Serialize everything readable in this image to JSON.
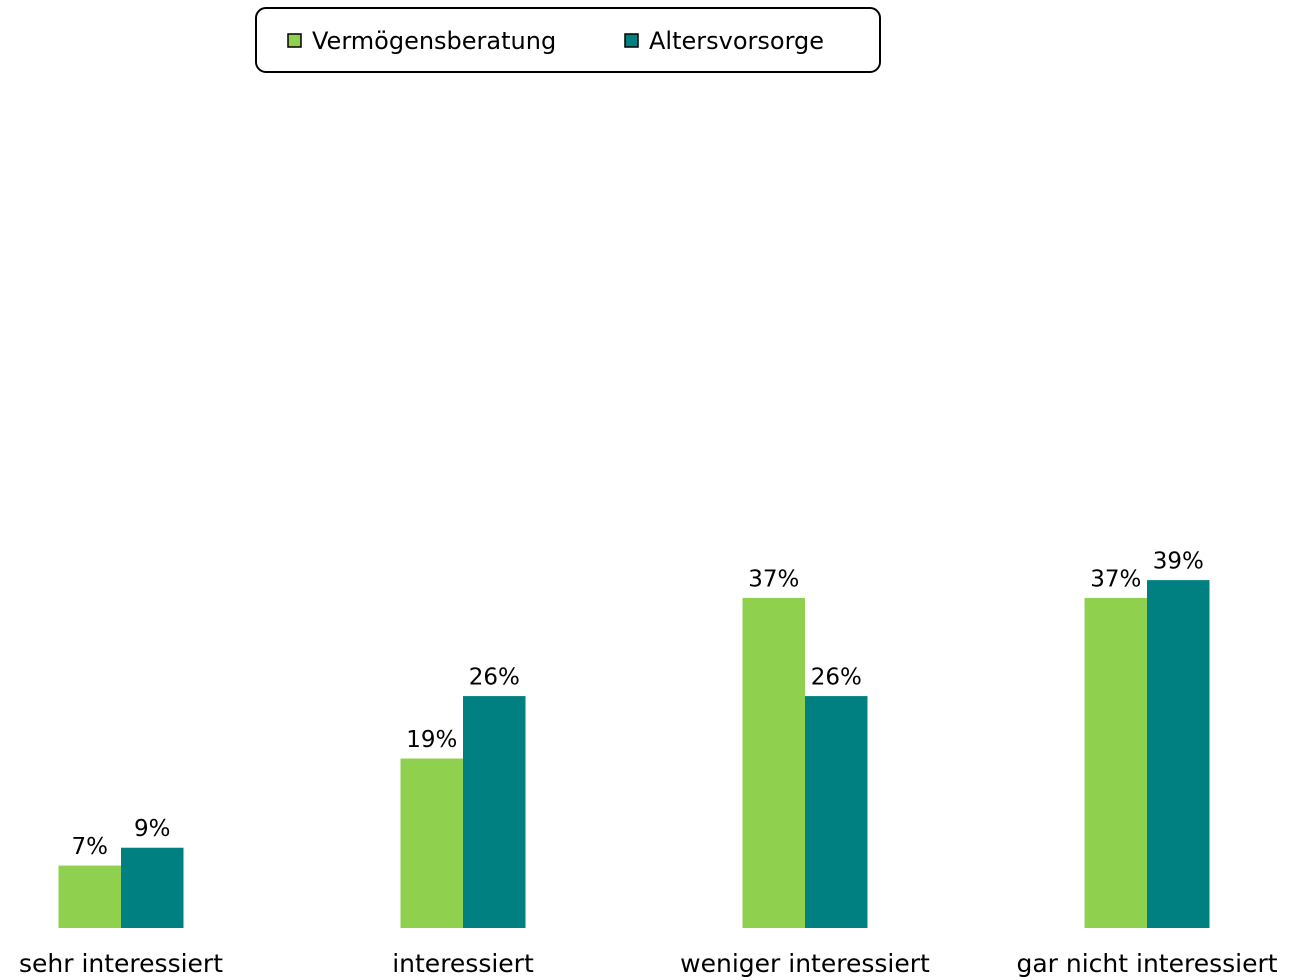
{
  "chart_data": {
    "type": "bar",
    "categories": [
      "sehr interessiert",
      "interessiert",
      "weniger interessiert",
      "gar nicht interessiert"
    ],
    "series": [
      {
        "name": "Vermögensberatung",
        "color": "#8fd14f",
        "values": [
          7,
          19,
          37,
          37
        ],
        "value_labels": [
          "7%",
          "19%",
          "37%",
          "37%"
        ]
      },
      {
        "name": "Altersvorsorge",
        "color": "#008080",
        "values": [
          9,
          26,
          26,
          39
        ],
        "value_labels": [
          "9%",
          "26%",
          "26%",
          "39%"
        ]
      }
    ]
  }
}
